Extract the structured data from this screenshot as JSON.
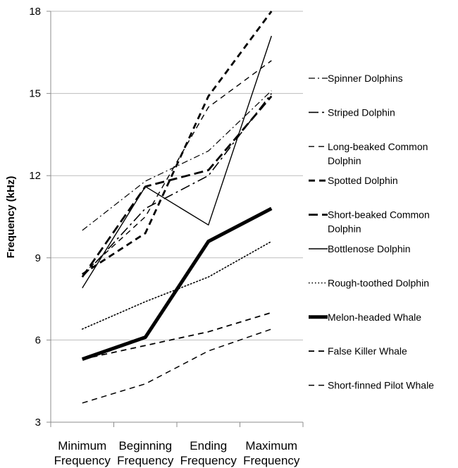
{
  "chart_data": {
    "type": "line",
    "title": "",
    "xlabel": "",
    "ylabel": "Frequency (kHz)",
    "ylim": [
      3,
      18
    ],
    "yticks": [
      "3",
      "6",
      "9",
      "12",
      "15",
      "18"
    ],
    "categories": [
      [
        "Minimum",
        "Frequency"
      ],
      [
        "Beginning",
        "Frequency"
      ],
      [
        "Ending",
        "Frequency"
      ],
      [
        "Maximum",
        "Frequency"
      ]
    ],
    "grid": "horizontal",
    "legend_position": "right",
    "series": [
      {
        "name": "Spinner Dolphins",
        "legend_lines": [
          "Spinner Dolphins"
        ],
        "values": [
          10.0,
          11.8,
          12.9,
          15.1
        ],
        "style": "dashdot",
        "width": 1.2
      },
      {
        "name": "Striped Dolphin",
        "legend_lines": [
          "Striped Dolphin"
        ],
        "values": [
          8.3,
          10.8,
          12.0,
          15.0
        ],
        "style": "longdashdot",
        "width": 1.6
      },
      {
        "name": "Long-beaked Common Dolphin",
        "legend_lines": [
          "Long-beaked Common",
          "Dolphin"
        ],
        "values": [
          8.4,
          10.5,
          14.5,
          16.2
        ],
        "style": "dash",
        "width": 1.4
      },
      {
        "name": "Spotted Dolphin",
        "legend_lines": [
          "Spotted Dolphin"
        ],
        "values": [
          8.4,
          9.9,
          14.9,
          18.0
        ],
        "style": "dash",
        "width": 2.8
      },
      {
        "name": "Short-beaked Common Dolphin",
        "legend_lines": [
          "Short-beaked Common",
          "Dolphin"
        ],
        "values": [
          8.3,
          11.6,
          12.2,
          14.9
        ],
        "style": "longdash",
        "width": 2.8
      },
      {
        "name": "Bottlenose Dolphin",
        "legend_lines": [
          "Bottlenose Dolphin"
        ],
        "values": [
          7.9,
          11.6,
          10.2,
          17.1
        ],
        "style": "solid",
        "width": 1.4
      },
      {
        "name": "Rough-toothed Dolphin",
        "legend_lines": [
          "Rough-toothed Dolphin"
        ],
        "values": [
          6.4,
          7.4,
          8.3,
          9.6
        ],
        "style": "dot",
        "width": 1.6
      },
      {
        "name": "Melon-headed Whale",
        "legend_lines": [
          "Melon-headed Whale"
        ],
        "values": [
          5.3,
          6.1,
          9.6,
          10.8
        ],
        "style": "solid",
        "width": 5.0
      },
      {
        "name": "False Killer Whale",
        "legend_lines": [
          "False Killer Whale"
        ],
        "values": [
          5.3,
          5.8,
          6.3,
          7.0
        ],
        "style": "dash",
        "width": 1.8
      },
      {
        "name": "Short-finned Pilot Whale",
        "legend_lines": [
          "Short-finned Pilot Whale"
        ],
        "values": [
          3.7,
          4.4,
          5.6,
          6.4
        ],
        "style": "dash",
        "width": 1.5
      }
    ]
  }
}
